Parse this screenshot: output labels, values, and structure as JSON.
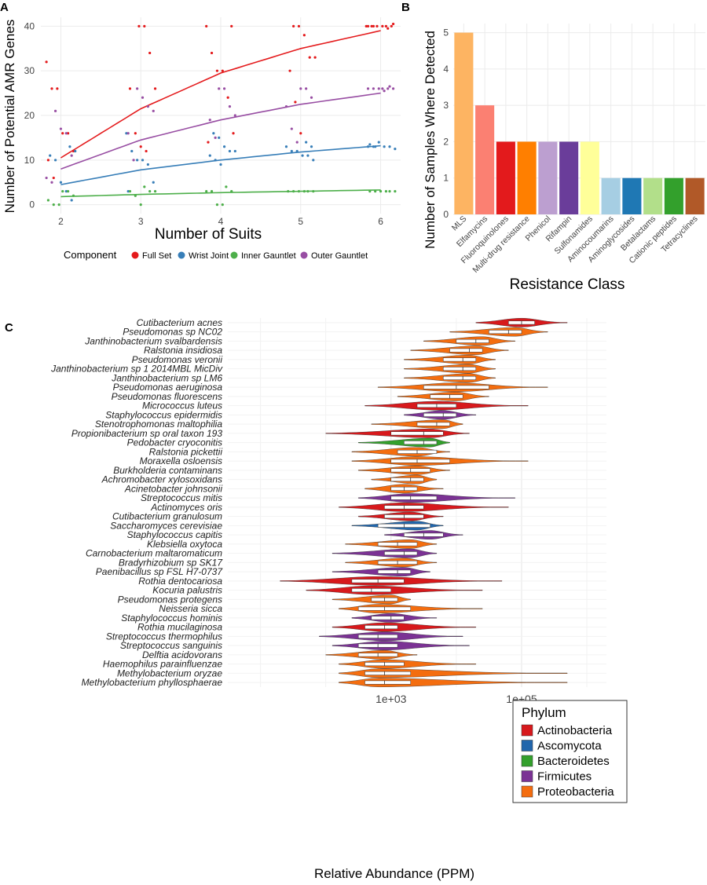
{
  "panel_labels": {
    "a": "A",
    "b": "B",
    "c": "C"
  },
  "chart_data": [
    {
      "type": "scatter",
      "panel": "A",
      "xlabel": "Number of Suits",
      "ylabel": "Number of Potential AMR Genes",
      "xlim": [
        1.75,
        6.25
      ],
      "ylim": [
        -2,
        42
      ],
      "x_ticks": [
        2,
        3,
        4,
        5,
        6
      ],
      "y_ticks": [
        0,
        10,
        20,
        30,
        40
      ],
      "legend_title": "Component",
      "legend_position": "bottom",
      "series": [
        {
          "name": "Full Set",
          "color": "#e41a1c",
          "fit": {
            "x": [
              2,
              3,
              4,
              5,
              6
            ],
            "y": [
              10.5,
              21.5,
              29.5,
              35.0,
              39.0
            ]
          },
          "points": {
            "x": [
              2,
              2,
              2,
              2,
              2,
              2,
              2,
              2,
              3,
              3,
              3,
              3,
              3,
              3,
              3,
              3,
              4,
              4,
              4,
              4,
              4,
              4,
              4,
              4,
              5,
              5,
              5,
              5,
              5,
              5,
              5,
              5,
              6,
              6,
              6,
              6,
              6,
              6,
              6,
              6,
              6,
              6
            ],
            "y": [
              32,
              26,
              26,
              16,
              16,
              12,
              10,
              6,
              40,
              40,
              34,
              26,
              26,
              16,
              13,
              12,
              40,
              40,
              34,
              30,
              30,
              24,
              16,
              14,
              40,
              40,
              38,
              33,
              33,
              30,
              23,
              16,
              40,
              40,
              40,
              40,
              40,
              40,
              39.5,
              40.5,
              40,
              40
            ]
          }
        },
        {
          "name": "Wrist Joint",
          "color": "#377eb8",
          "fit": {
            "x": [
              2,
              3,
              4,
              5,
              6
            ],
            "y": [
              4.5,
              7.8,
              10.0,
              11.8,
              13.2
            ]
          },
          "points": {
            "x": [
              2,
              2,
              2,
              2,
              2,
              2,
              2,
              3,
              3,
              3,
              3,
              3,
              3,
              3,
              4,
              4,
              4,
              4,
              4,
              4,
              4,
              4,
              5,
              5,
              5,
              5,
              5,
              5,
              5,
              5,
              6,
              6,
              6,
              6,
              6,
              6,
              6,
              6
            ],
            "y": [
              13,
              12,
              11,
              10,
              5,
              3,
              1,
              16,
              12,
              10,
              10,
              9,
              5,
              3,
              16,
              15,
              13,
              12,
              12,
              11,
              10,
              9,
              14,
              13,
              13,
              12,
              12,
              11,
              11,
              10,
              13,
              13,
              14,
              13,
              13,
              12.5,
              13.5,
              13
            ]
          }
        },
        {
          "name": "Inner Gauntlet",
          "color": "#4daf4a",
          "fit": {
            "x": [
              2,
              3,
              4,
              5,
              6
            ],
            "y": [
              1.8,
              2.3,
              2.7,
              3.0,
              3.3
            ]
          },
          "points": {
            "x": [
              2,
              2,
              2,
              2,
              2,
              2,
              3,
              3,
              3,
              3,
              3,
              3,
              4,
              4,
              4,
              4,
              4,
              4,
              5,
              5,
              5,
              5,
              5,
              5,
              6,
              6,
              6,
              6,
              6,
              6
            ],
            "y": [
              3,
              3,
              2,
              1,
              0,
              0,
              4,
              3,
              3,
              3,
              2,
              0,
              4,
              3,
              3,
              3,
              0,
              0,
              3,
              3,
              3,
              3,
              3,
              3,
              3,
              3,
              3,
              3,
              3,
              3
            ]
          }
        },
        {
          "name": "Outer Gauntlet",
          "color": "#984ea3",
          "fit": {
            "x": [
              2,
              3,
              4,
              5,
              6
            ],
            "y": [
              8.0,
              14.5,
              19.0,
              22.5,
              25.0
            ]
          },
          "points": {
            "x": [
              2,
              2,
              2,
              2,
              2,
              2,
              3,
              3,
              3,
              3,
              3,
              3,
              4,
              4,
              4,
              4,
              4,
              4,
              5,
              5,
              5,
              5,
              5,
              5,
              6,
              6,
              6,
              6,
              6,
              6,
              6,
              6
            ],
            "y": [
              21,
              17,
              16,
              11,
              6,
              5,
              26,
              24,
              22,
              21,
              16,
              10,
              26,
              26,
              22,
              20,
              19,
              15,
              26,
              26,
              24,
              22,
              17,
              14,
              26,
              26,
              26,
              26,
              26,
              26,
              25.5,
              26.5
            ]
          }
        }
      ]
    },
    {
      "type": "bar",
      "panel": "B",
      "xlabel": "Resistance Class",
      "ylabel": "Number of Samples Where Detected",
      "ylim": [
        0,
        5.25
      ],
      "y_ticks": [
        0,
        1,
        2,
        3,
        4,
        5
      ],
      "categories": [
        "MLS",
        "Elfamycins",
        "Fluoroquinolones",
        "Multi-drug resistance",
        "Phenicol",
        "Rifampin",
        "Sulfonamides",
        "Aminocoumarins",
        "Aminoglycosides",
        "Betalactams",
        "Cationic peptides",
        "Tetracyclines"
      ],
      "values": [
        5,
        3,
        2,
        2,
        2,
        2,
        2,
        1,
        1,
        1,
        1,
        1
      ],
      "colors": [
        "#fdb462",
        "#fb8072",
        "#e31a1c",
        "#ff7f00",
        "#bc9fd0",
        "#6a3d9a",
        "#ffff99",
        "#a6cee3",
        "#1f78b4",
        "#b2df8a",
        "#33a02c",
        "#b15928"
      ]
    },
    {
      "type": "violin",
      "panel": "C",
      "xlabel": "Relative Abundance (PPM)",
      "x_scale": "log10",
      "xlim_log10": [
        0.5,
        6.3
      ],
      "x_ticks": [
        "1e+03",
        "1e+05"
      ],
      "x_tick_values_log10": [
        3,
        5
      ],
      "legend_title": "Phylum",
      "legend_position": "right",
      "phyla": [
        {
          "name": "Actinobacteria",
          "color": "#d7191c"
        },
        {
          "name": "Ascomycota",
          "color": "#2166ac"
        },
        {
          "name": "Bacteroidetes",
          "color": "#33a02c"
        },
        {
          "name": "Firmicutes",
          "color": "#7b3294"
        },
        {
          "name": "Proteobacteria",
          "color": "#f46d0f"
        }
      ],
      "taxa": [
        {
          "name": "Cutibacterium acnes",
          "phylum": "Actinobacteria",
          "min": 4.3,
          "max": 5.7,
          "median": 5.0,
          "q1": 4.8,
          "q3": 5.2,
          "peak": 5.0
        },
        {
          "name": "Pseudomonas sp NC02",
          "phylum": "Proteobacteria",
          "min": 3.9,
          "max": 5.4,
          "median": 4.8,
          "q1": 4.5,
          "q3": 5.0,
          "peak": 4.9
        },
        {
          "name": "Janthinobacterium svalbardensis",
          "phylum": "Proteobacteria",
          "min": 3.5,
          "max": 4.9,
          "median": 4.3,
          "q1": 4.0,
          "q3": 4.5,
          "peak": 4.4
        },
        {
          "name": "Ralstonia insidiosa",
          "phylum": "Proteobacteria",
          "min": 3.3,
          "max": 4.8,
          "median": 4.2,
          "q1": 3.9,
          "q3": 4.4,
          "peak": 4.3
        },
        {
          "name": "Pseudomonas veronii",
          "phylum": "Proteobacteria",
          "min": 3.2,
          "max": 4.6,
          "median": 4.1,
          "q1": 3.8,
          "q3": 4.3,
          "peak": 4.2
        },
        {
          "name": "Janthinobacterium sp 1 2014MBL MicDiv",
          "phylum": "Proteobacteria",
          "min": 3.2,
          "max": 4.6,
          "median": 4.1,
          "q1": 3.8,
          "q3": 4.3,
          "peak": 4.2
        },
        {
          "name": "Janthinobacterium sp LM6",
          "phylum": "Proteobacteria",
          "min": 3.2,
          "max": 4.6,
          "median": 4.1,
          "q1": 3.8,
          "q3": 4.3,
          "peak": 4.2
        },
        {
          "name": "Pseudomonas aeruginosa",
          "phylum": "Proteobacteria",
          "min": 2.8,
          "max": 5.4,
          "median": 4.0,
          "q1": 3.5,
          "q3": 4.5,
          "peak": 4.0
        },
        {
          "name": "Pseudomonas fluorescens",
          "phylum": "Proteobacteria",
          "min": 3.1,
          "max": 4.5,
          "median": 3.9,
          "q1": 3.6,
          "q3": 4.1,
          "peak": 4.0
        },
        {
          "name": "Micrococcus luteus",
          "phylum": "Actinobacteria",
          "min": 2.6,
          "max": 5.1,
          "median": 3.7,
          "q1": 3.4,
          "q3": 4.0,
          "peak": 3.7
        },
        {
          "name": "Staphylococcus epidermidis",
          "phylum": "Firmicutes",
          "min": 3.2,
          "max": 4.3,
          "median": 3.8,
          "q1": 3.5,
          "q3": 4.0,
          "peak": 3.8
        },
        {
          "name": "Stenotrophomonas maltophilia",
          "phylum": "Proteobacteria",
          "min": 2.7,
          "max": 4.1,
          "median": 3.7,
          "q1": 3.4,
          "q3": 3.9,
          "peak": 3.8
        },
        {
          "name": "Propionibacterium sp oral taxon 193",
          "phylum": "Actinobacteria",
          "min": 2.0,
          "max": 4.2,
          "median": 3.5,
          "q1": 3.0,
          "q3": 3.8,
          "peak": 3.6
        },
        {
          "name": "Pedobacter cryoconitis",
          "phylum": "Bacteroidetes",
          "min": 2.5,
          "max": 3.9,
          "median": 3.5,
          "q1": 3.2,
          "q3": 3.7,
          "peak": 3.6
        },
        {
          "name": "Ralstonia pickettii",
          "phylum": "Proteobacteria",
          "min": 2.4,
          "max": 3.9,
          "median": 3.4,
          "q1": 3.1,
          "q3": 3.7,
          "peak": 3.4
        },
        {
          "name": "Moraxella osloensis",
          "phylum": "Proteobacteria",
          "min": 2.4,
          "max": 5.1,
          "median": 3.4,
          "q1": 3.0,
          "q3": 3.9,
          "peak": 3.4
        },
        {
          "name": "Burkholderia contaminans",
          "phylum": "Proteobacteria",
          "min": 2.5,
          "max": 3.9,
          "median": 3.3,
          "q1": 3.0,
          "q3": 3.6,
          "peak": 3.4
        },
        {
          "name": "Achromobacter xylosoxidans",
          "phylum": "Proteobacteria",
          "min": 2.7,
          "max": 3.7,
          "median": 3.3,
          "q1": 3.0,
          "q3": 3.5,
          "peak": 3.4
        },
        {
          "name": "Acinetobacter johnsonii",
          "phylum": "Proteobacteria",
          "min": 2.6,
          "max": 3.8,
          "median": 3.2,
          "q1": 3.0,
          "q3": 3.4,
          "peak": 3.2
        },
        {
          "name": "Streptococcus mitis",
          "phylum": "Firmicutes",
          "min": 2.5,
          "max": 4.9,
          "median": 3.3,
          "q1": 3.0,
          "q3": 3.7,
          "peak": 3.3
        },
        {
          "name": "Actinomyces oris",
          "phylum": "Actinobacteria",
          "min": 2.2,
          "max": 4.8,
          "median": 3.2,
          "q1": 2.9,
          "q3": 3.5,
          "peak": 3.2
        },
        {
          "name": "Cutibacterium granulosum",
          "phylum": "Actinobacteria",
          "min": 2.5,
          "max": 3.8,
          "median": 3.2,
          "q1": 2.9,
          "q3": 3.5,
          "peak": 3.3
        },
        {
          "name": "Saccharomyces cerevisiae",
          "phylum": "Ascomycota",
          "min": 2.4,
          "max": 3.8,
          "median": 3.2,
          "q1": 2.8,
          "q3": 3.6,
          "peak": 3.4
        },
        {
          "name": "Staphylococcus capitis",
          "phylum": "Firmicutes",
          "min": 2.9,
          "max": 4.1,
          "median": 3.5,
          "q1": 3.2,
          "q3": 3.8,
          "peak": 3.6
        },
        {
          "name": "Klebsiella oxytoca",
          "phylum": "Proteobacteria",
          "min": 2.3,
          "max": 3.7,
          "median": 3.1,
          "q1": 2.8,
          "q3": 3.4,
          "peak": 3.3
        },
        {
          "name": "Carnobacterium maltaromaticum",
          "phylum": "Firmicutes",
          "min": 2.1,
          "max": 3.7,
          "median": 3.2,
          "q1": 2.9,
          "q3": 3.4,
          "peak": 3.3
        },
        {
          "name": "Bradyrhizobium sp SK17",
          "phylum": "Proteobacteria",
          "min": 2.3,
          "max": 3.7,
          "median": 3.1,
          "q1": 2.8,
          "q3": 3.4,
          "peak": 3.2
        },
        {
          "name": "Paenibacillus sp FSL H7-0737",
          "phylum": "Firmicutes",
          "min": 2.1,
          "max": 3.6,
          "median": 3.1,
          "q1": 2.8,
          "q3": 3.3,
          "peak": 3.2
        },
        {
          "name": "Rothia dentocariosa",
          "phylum": "Actinobacteria",
          "min": 1.3,
          "max": 4.7,
          "median": 2.8,
          "q1": 2.4,
          "q3": 3.2,
          "peak": 2.8
        },
        {
          "name": "Kocuria palustris",
          "phylum": "Actinobacteria",
          "min": 1.7,
          "max": 4.4,
          "median": 2.7,
          "q1": 2.4,
          "q3": 3.0,
          "peak": 2.7
        },
        {
          "name": "Pseudomonas protegens",
          "phylum": "Proteobacteria",
          "min": 2.1,
          "max": 3.3,
          "median": 2.9,
          "q1": 2.7,
          "q3": 3.1,
          "peak": 3.0
        },
        {
          "name": "Neisseria sicca",
          "phylum": "Proteobacteria",
          "min": 2.2,
          "max": 4.4,
          "median": 2.9,
          "q1": 2.5,
          "q3": 3.3,
          "peak": 2.8
        },
        {
          "name": "Staphylococcus hominis",
          "phylum": "Firmicutes",
          "min": 2.4,
          "max": 3.7,
          "median": 3.0,
          "q1": 2.7,
          "q3": 3.2,
          "peak": 3.0
        },
        {
          "name": "Rothia mucilaginosa",
          "phylum": "Actinobacteria",
          "min": 2.1,
          "max": 4.3,
          "median": 2.9,
          "q1": 2.6,
          "q3": 3.1,
          "peak": 2.9
        },
        {
          "name": "Streptococcus thermophilus",
          "phylum": "Firmicutes",
          "min": 1.9,
          "max": 4.1,
          "median": 2.8,
          "q1": 2.5,
          "q3": 3.1,
          "peak": 2.9
        },
        {
          "name": "Streptococcus sanguinis",
          "phylum": "Firmicutes",
          "min": 2.1,
          "max": 4.2,
          "median": 2.8,
          "q1": 2.5,
          "q3": 3.1,
          "peak": 2.9
        },
        {
          "name": "Delftia acidovorans",
          "phylum": "Proteobacteria",
          "min": 2.0,
          "max": 3.4,
          "median": 2.8,
          "q1": 2.5,
          "q3": 3.1,
          "peak": 2.9
        },
        {
          "name": "Haemophilus parainfluenzae",
          "phylum": "Proteobacteria",
          "min": 2.2,
          "max": 4.3,
          "median": 2.9,
          "q1": 2.6,
          "q3": 3.2,
          "peak": 2.9
        },
        {
          "name": "Methylobacterium oryzae",
          "phylum": "Proteobacteria",
          "min": 2.2,
          "max": 5.7,
          "median": 2.9,
          "q1": 2.6,
          "q3": 3.3,
          "peak": 2.8
        },
        {
          "name": "Methylobacterium phyllosphaerae",
          "phylum": "Proteobacteria",
          "min": 2.2,
          "max": 5.7,
          "median": 2.9,
          "q1": 2.6,
          "q3": 3.3,
          "peak": 2.8
        }
      ]
    }
  ]
}
